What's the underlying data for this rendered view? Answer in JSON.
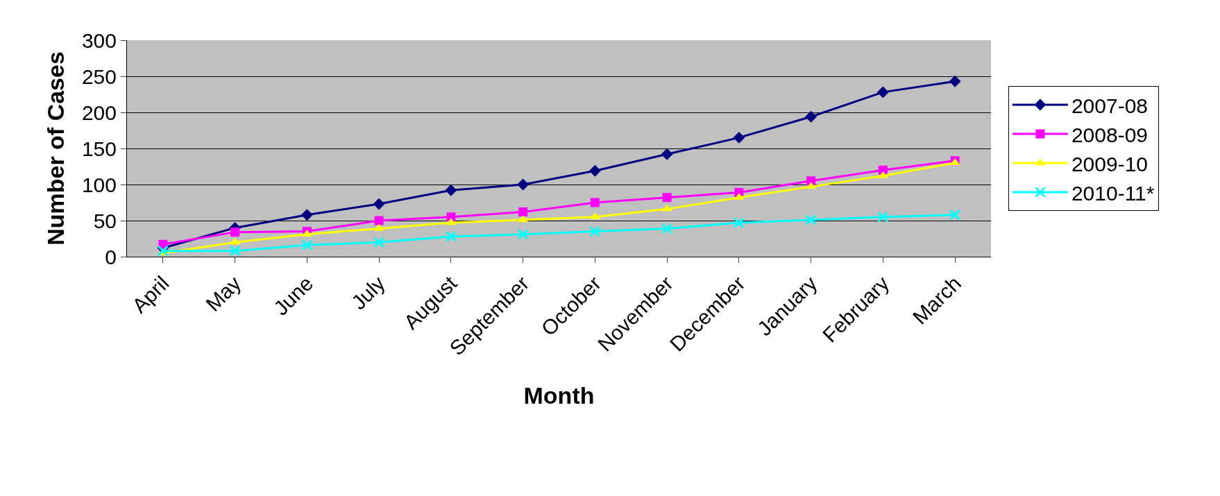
{
  "chart_data": {
    "type": "line",
    "xlabel": "Month",
    "ylabel": "Number of Cases",
    "categories": [
      "April",
      "May",
      "June",
      "July",
      "August",
      "September",
      "October",
      "November",
      "December",
      "January",
      "February",
      "March"
    ],
    "series": [
      {
        "name": "2007-08",
        "color": "#000080",
        "marker": "diamond",
        "values": [
          12,
          40,
          58,
          73,
          92,
          100,
          119,
          142,
          165,
          194,
          228,
          243
        ]
      },
      {
        "name": "2008-09",
        "color": "#ff00ff",
        "marker": "square",
        "values": [
          17,
          34,
          35,
          50,
          55,
          62,
          75,
          82,
          89,
          105,
          120,
          133
        ]
      },
      {
        "name": "2009-10",
        "color": "#ffff00",
        "marker": "triangle",
        "values": [
          5,
          20,
          31,
          39,
          47,
          51,
          55,
          66,
          82,
          97,
          112,
          130
        ]
      },
      {
        "name": "2010-11*",
        "color": "#00ffff",
        "marker": "cross",
        "values": [
          8,
          8,
          16,
          20,
          28,
          31,
          35,
          39,
          47,
          51,
          55,
          58
        ]
      }
    ],
    "ylim": [
      0,
      300
    ],
    "yticks": [
      0,
      50,
      100,
      150,
      200,
      250,
      300
    ],
    "grid": "y",
    "legend": "right",
    "line_style": "solid"
  }
}
